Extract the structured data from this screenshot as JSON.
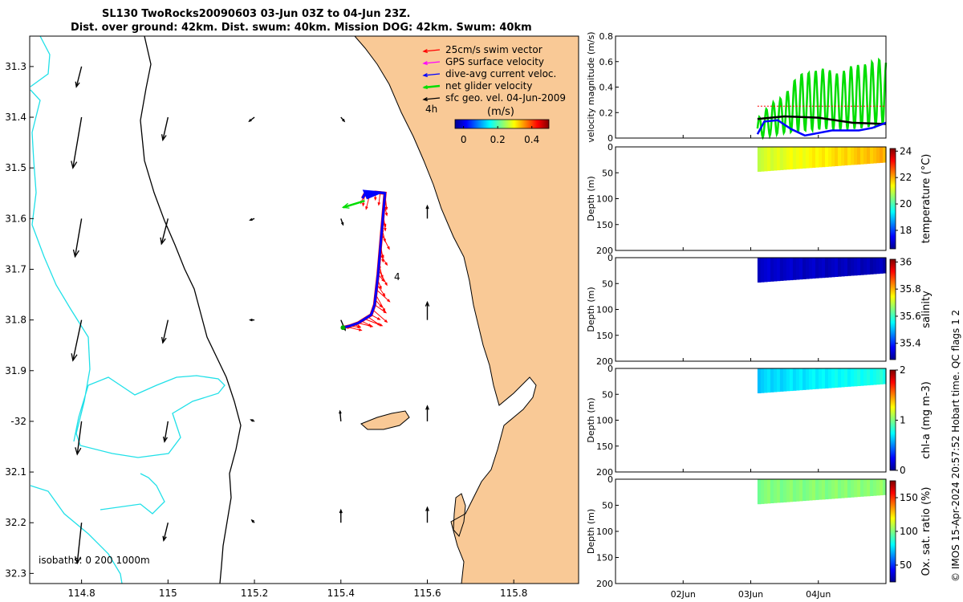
{
  "title": {
    "line1": "SL130 TwoRocks20090603 03-Jun 03Z to 04-Jun 23Z.",
    "line2": "Dist. over ground: 42km. Dist. swum: 40km. Mission DOG: 42km. Swum: 40km"
  },
  "credit": "© IMOS 15-Apr-2024 20:57:52 Hobart time. QC flags 1  2",
  "colors": {
    "land": "#f9c996",
    "isobath_shallow": "#000000",
    "isobath_deep": "#20e0e8",
    "swim": "#ff0000",
    "gps": "#ff00ff",
    "dive_avg": "#0000ff",
    "net": "#00dd00",
    "geo": "#000000"
  },
  "chart_data": [
    {
      "type": "map",
      "xlim": [
        114.68,
        115.95
      ],
      "ylim": [
        -32.32,
        -31.24
      ],
      "x_ticks": [
        114.8,
        115,
        115.2,
        115.4,
        115.6,
        115.8
      ],
      "x_tick_labels": [
        "114.8",
        "115",
        "115.2",
        "115.4",
        "115.6",
        "115.8"
      ],
      "y_ticks": [
        -31.3,
        -31.4,
        -31.5,
        -31.6,
        -31.7,
        -31.8,
        -31.9,
        -32,
        -32.1,
        -32.2,
        -32.3
      ],
      "y_tick_labels": [
        "31.3",
        "31.4",
        "31.5",
        "31.6",
        "31.7",
        "31.8",
        "31.9",
        "-32",
        "32.1",
        "32.2",
        "32.3"
      ],
      "legend": {
        "placement": "top-right",
        "entries": [
          {
            "label": "25cm/s swim vector",
            "color": "#ff0000"
          },
          {
            "label": "GPS surface velocity",
            "color": "#ff00ff"
          },
          {
            "label": "dive-avg current veloc.",
            "color": "#0000ff"
          },
          {
            "label": "net glider velocity",
            "color": "#00dd00"
          },
          {
            "label": "sfc geo. vel. 04-Jun-2009",
            "color": "#000000"
          }
        ],
        "time_label": "4h"
      },
      "colorbar": {
        "label": "(m/s)",
        "range": [
          -0.05,
          0.5
        ],
        "ticks": [
          0,
          0.2,
          0.4
        ],
        "tick_labels": [
          "0",
          "0.2",
          "0.4"
        ]
      },
      "isobaths_label": "isobaths: 0   200  1000m",
      "track_label": "4",
      "glider_track": [
        [
          115.405,
          -31.815
        ],
        [
          115.42,
          -31.812
        ],
        [
          115.44,
          -31.806
        ],
        [
          115.455,
          -31.798
        ],
        [
          115.47,
          -31.79
        ],
        [
          115.478,
          -31.77
        ],
        [
          115.482,
          -31.74
        ],
        [
          115.486,
          -31.71
        ],
        [
          115.49,
          -31.67
        ],
        [
          115.494,
          -31.63
        ],
        [
          115.497,
          -31.6
        ],
        [
          115.5,
          -31.57
        ],
        [
          115.502,
          -31.55
        ],
        [
          115.48,
          -31.548
        ],
        [
          115.455,
          -31.552
        ],
        [
          115.45,
          -31.56
        ]
      ],
      "net_velocity_arrow": {
        "from": [
          115.455,
          -31.565
        ],
        "to": [
          115.405,
          -31.578
        ]
      },
      "geostrophic_vectors": [
        {
          "lon": 114.8,
          "lat": -31.3,
          "dx": -0.012,
          "dy": -0.04
        },
        {
          "lon": 114.8,
          "lat": -31.4,
          "dx": -0.02,
          "dy": -0.1
        },
        {
          "lon": 114.8,
          "lat": -31.6,
          "dx": -0.015,
          "dy": -0.075
        },
        {
          "lon": 114.8,
          "lat": -31.8,
          "dx": -0.02,
          "dy": -0.08
        },
        {
          "lon": 114.8,
          "lat": -32.0,
          "dx": -0.01,
          "dy": -0.065
        },
        {
          "lon": 114.8,
          "lat": -32.2,
          "dx": -0.01,
          "dy": -0.08
        },
        {
          "lon": 115.0,
          "lat": -31.4,
          "dx": -0.012,
          "dy": -0.045
        },
        {
          "lon": 115.0,
          "lat": -31.6,
          "dx": -0.015,
          "dy": -0.05
        },
        {
          "lon": 115.0,
          "lat": -31.8,
          "dx": -0.012,
          "dy": -0.045
        },
        {
          "lon": 115.0,
          "lat": -32.0,
          "dx": -0.008,
          "dy": -0.04
        },
        {
          "lon": 115.0,
          "lat": -32.2,
          "dx": -0.01,
          "dy": -0.035
        },
        {
          "lon": 115.2,
          "lat": -31.4,
          "dx": -0.012,
          "dy": -0.008
        },
        {
          "lon": 115.2,
          "lat": -31.6,
          "dx": -0.01,
          "dy": -0.003
        },
        {
          "lon": 115.2,
          "lat": -31.8,
          "dx": -0.01,
          "dy": 0.0
        },
        {
          "lon": 115.2,
          "lat": -32.0,
          "dx": -0.008,
          "dy": 0.003
        },
        {
          "lon": 115.2,
          "lat": -32.2,
          "dx": -0.006,
          "dy": 0.005
        },
        {
          "lon": 115.4,
          "lat": -31.4,
          "dx": 0.008,
          "dy": -0.008
        },
        {
          "lon": 115.4,
          "lat": -31.6,
          "dx": 0.005,
          "dy": -0.012
        },
        {
          "lon": 115.4,
          "lat": -31.8,
          "dx": 0.01,
          "dy": -0.02
        },
        {
          "lon": 115.4,
          "lat": -32.0,
          "dx": -0.002,
          "dy": 0.02
        },
        {
          "lon": 115.4,
          "lat": -32.2,
          "dx": 0.0,
          "dy": 0.025
        },
        {
          "lon": 115.6,
          "lat": -31.6,
          "dx": 0.0,
          "dy": 0.025
        },
        {
          "lon": 115.6,
          "lat": -31.8,
          "dx": 0.0,
          "dy": 0.035
        },
        {
          "lon": 115.6,
          "lat": -32.0,
          "dx": 0.0,
          "dy": 0.03
        },
        {
          "lon": 115.6,
          "lat": -32.2,
          "dx": 0.0,
          "dy": 0.03
        }
      ]
    },
    {
      "type": "line",
      "ylabel": "velocity magnitude (m/s)",
      "ylim": [
        0,
        0.8
      ],
      "y_ticks": [
        0,
        0.2,
        0.4,
        0.6,
        0.8
      ],
      "y_tick_labels": [
        "0",
        "0.2",
        "0.4",
        "0.6",
        "0.8"
      ],
      "xlim_days": [
        1.0,
        5.0
      ],
      "series": [
        {
          "name": "net glider velocity",
          "color": "#00dd00",
          "x": [
            3.1,
            3.3,
            3.5,
            3.7,
            3.9,
            4.1,
            4.3,
            4.5,
            4.7,
            4.9,
            5.0
          ],
          "envelope_max": [
            0.15,
            0.27,
            0.33,
            0.5,
            0.52,
            0.55,
            0.5,
            0.57,
            0.58,
            0.62,
            0.6
          ],
          "envelope_min": [
            0.0,
            0.02,
            0.04,
            0.05,
            0.06,
            0.07,
            0.06,
            0.07,
            0.08,
            0.1,
            0.12
          ]
        },
        {
          "name": "sfc geo. vel.",
          "color": "#000000",
          "x": [
            3.1,
            3.5,
            4.0,
            4.5,
            5.0
          ],
          "y": [
            0.15,
            0.17,
            0.16,
            0.12,
            0.11
          ]
        },
        {
          "name": "dive-avg current",
          "color": "#0000ff",
          "x": [
            3.1,
            3.2,
            3.4,
            3.6,
            3.8,
            4.0,
            4.2,
            4.4,
            4.6,
            4.8,
            5.0
          ],
          "y": [
            0.03,
            0.13,
            0.14,
            0.07,
            0.02,
            0.04,
            0.06,
            0.06,
            0.06,
            0.08,
            0.12
          ]
        },
        {
          "name": "swim",
          "color": "#ff0000",
          "x": [
            3.1,
            5.0
          ],
          "y": [
            0.25,
            0.25
          ]
        }
      ]
    },
    {
      "type": "heatmap",
      "ylabel": "Depth (m)",
      "clabel": "temperature (°C)",
      "ylim": [
        0,
        200
      ],
      "y_ticks": [
        0,
        50,
        100,
        150,
        200
      ],
      "clim": [
        16.6,
        24.2
      ],
      "c_ticks": [
        18,
        20,
        22,
        24
      ],
      "colormap": "jet",
      "data_x_range": [
        3.1,
        5.0
      ],
      "max_depth_start": 48,
      "max_depth_end": 30,
      "value_start": 21.0,
      "value_end": 22.0
    },
    {
      "type": "heatmap",
      "ylabel": "Depth (m)",
      "clabel": "salinity",
      "ylim": [
        0,
        200
      ],
      "y_ticks": [
        0,
        50,
        100,
        150,
        200
      ],
      "clim": [
        35.28,
        36.02
      ],
      "c_ticks": [
        35.4,
        35.6,
        35.8,
        36
      ],
      "c_tick_labels": [
        "35.4",
        "35.6",
        "35.8",
        "36"
      ],
      "colormap": "jet",
      "data_x_range": [
        3.1,
        5.0
      ],
      "max_depth_start": 48,
      "max_depth_end": 30,
      "value_start": 35.33,
      "value_end": 35.31
    },
    {
      "type": "heatmap",
      "ylabel": "Depth (m)",
      "clabel": "chl-a (mg m-3)",
      "ylim": [
        0,
        200
      ],
      "y_ticks": [
        0,
        50,
        100,
        150,
        200
      ],
      "clim": [
        0,
        2
      ],
      "c_ticks": [
        0,
        1,
        2
      ],
      "colormap": "jet",
      "data_x_range": [
        3.1,
        5.0
      ],
      "max_depth_start": 48,
      "max_depth_end": 30,
      "value_start": 0.65,
      "value_end": 0.8
    },
    {
      "type": "heatmap",
      "ylabel": "Depth (m)",
      "clabel": "Ox. sat. ratio (%)",
      "ylim": [
        0,
        200
      ],
      "y_ticks": [
        0,
        50,
        100,
        150,
        200
      ],
      "clim": [
        25,
        175
      ],
      "c_ticks": [
        50,
        100,
        150
      ],
      "colormap": "jet",
      "data_x_range": [
        3.1,
        5.0
      ],
      "max_depth_start": 48,
      "max_depth_end": 30,
      "value_start": 100,
      "value_end": 102
    }
  ],
  "time_axis": {
    "ticks": [
      2,
      3,
      4
    ],
    "tick_labels": [
      "02Jun",
      "03Jun",
      "04Jun"
    ]
  }
}
